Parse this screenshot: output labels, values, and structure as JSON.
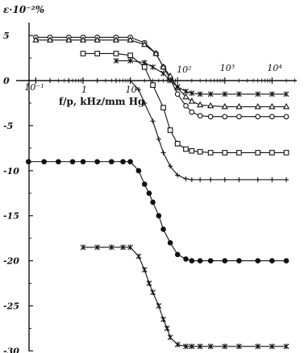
{
  "chart_data": {
    "type": "line",
    "ylabel": "ε·10⁻²%",
    "xlabel": "f/p, kHz/mm Hg",
    "x_scale": "log",
    "xlim": [
      0.1,
      100000
    ],
    "ylim": [
      -30,
      5
    ],
    "y_ticks": [
      5,
      0,
      -5,
      -10,
      -15,
      -20,
      -25,
      -30
    ],
    "y_tick_labels": [
      "5",
      "0",
      "-5",
      "-10",
      "-15",
      "-20",
      "-25",
      "-30"
    ],
    "x_ticks": [
      0.1,
      1,
      10,
      100,
      1000,
      10000
    ],
    "x_tick_labels": [
      "10⁻¹",
      "1",
      "10",
      "10²",
      "10³",
      "10⁴"
    ],
    "grid": false,
    "series": [
      {
        "marker": "circle-open",
        "x": [
          0.1,
          0.2,
          0.5,
          1,
          2,
          5,
          10,
          20,
          35,
          50,
          70,
          100,
          150,
          200,
          300,
          500,
          1000,
          2000,
          5000,
          10000,
          20000
        ],
        "y": [
          4.8,
          4.8,
          4.8,
          4.8,
          4.8,
          4.8,
          4.8,
          4.2,
          3.0,
          1.5,
          0.2,
          -1.5,
          -2.8,
          -3.5,
          -3.9,
          -4.0,
          -4.0,
          -4.0,
          -4.0,
          -4.0,
          -4.0
        ]
      },
      {
        "marker": "triangle-open",
        "x": [
          0.1,
          0.2,
          0.5,
          1,
          2,
          5,
          10,
          20,
          35,
          50,
          70,
          100,
          150,
          200,
          300,
          500,
          1000,
          2000,
          5000,
          10000,
          20000
        ],
        "y": [
          4.5,
          4.5,
          4.5,
          4.5,
          4.5,
          4.5,
          4.5,
          4.0,
          3.0,
          1.5,
          0.5,
          -0.8,
          -1.8,
          -2.3,
          -2.7,
          -2.8,
          -2.9,
          -2.9,
          -2.9,
          -2.9,
          -2.9
        ]
      },
      {
        "marker": "square-open",
        "x": [
          1,
          2,
          5,
          10,
          20,
          30,
          50,
          70,
          100,
          150,
          200,
          300,
          500,
          1000,
          2000,
          5000,
          10000,
          20000
        ],
        "y": [
          3.0,
          3.0,
          3.0,
          2.8,
          1.5,
          -0.5,
          -3.0,
          -5.5,
          -7.0,
          -7.6,
          -7.8,
          -7.9,
          -8.0,
          -8.0,
          -8.0,
          -8.0,
          -8.0,
          -8.0
        ]
      },
      {
        "marker": "star",
        "x": [
          5,
          10,
          20,
          30,
          50,
          70,
          100,
          150,
          200,
          300,
          500,
          1000,
          2000,
          5000,
          10000,
          20000
        ],
        "y": [
          2.2,
          2.2,
          2.0,
          1.5,
          0.8,
          0.0,
          -0.7,
          -1.2,
          -1.4,
          -1.5,
          -1.5,
          -1.5,
          -1.5,
          -1.5,
          -1.5,
          -1.5
        ]
      },
      {
        "marker": "plus",
        "x": [
          0.1,
          0.2,
          0.5,
          1,
          2,
          5,
          10,
          15,
          20,
          30,
          40,
          50,
          70,
          100,
          150,
          200,
          300,
          500,
          1000,
          2000,
          5000,
          10000,
          20000
        ],
        "y": [
          0,
          0,
          0,
          0,
          0,
          0,
          0,
          -1.0,
          -2.5,
          -4.5,
          -6.5,
          -8.0,
          -9.5,
          -10.5,
          -10.9,
          -11.0,
          -11.0,
          -11.0,
          -11.0,
          -11.0,
          -11.0,
          -11.0,
          -11.0
        ]
      },
      {
        "marker": "circle-filled",
        "x": [
          0.07,
          0.15,
          0.3,
          0.6,
          1,
          2,
          4,
          7,
          10,
          15,
          20,
          25,
          30,
          40,
          50,
          70,
          100,
          150,
          200,
          300,
          500,
          1000,
          2000,
          5000,
          10000,
          20000
        ],
        "y": [
          -9.0,
          -9.0,
          -9.0,
          -9.0,
          -9.0,
          -9.0,
          -9.0,
          -9.0,
          -9.0,
          -10.0,
          -11.5,
          -12.5,
          -13.5,
          -15.0,
          -16.5,
          -18.0,
          -19.3,
          -19.8,
          -20.0,
          -20.0,
          -20.0,
          -20.0,
          -20.0,
          -20.0,
          -20.0,
          -20.0
        ]
      },
      {
        "marker": "asterisk",
        "x": [
          1,
          2,
          4,
          7,
          10,
          15,
          20,
          25,
          30,
          40,
          50,
          60,
          70,
          100,
          150,
          200,
          300,
          500,
          1000,
          2000,
          5000,
          10000,
          20000
        ],
        "y": [
          -18.5,
          -18.5,
          -18.5,
          -18.5,
          -18.5,
          -19.5,
          -21.0,
          -22.5,
          -23.5,
          -25.0,
          -26.5,
          -27.5,
          -28.5,
          -29.3,
          -29.5,
          -29.5,
          -29.5,
          -29.5,
          -29.5,
          -29.5,
          -29.5,
          -29.5,
          -29.5
        ]
      }
    ]
  }
}
